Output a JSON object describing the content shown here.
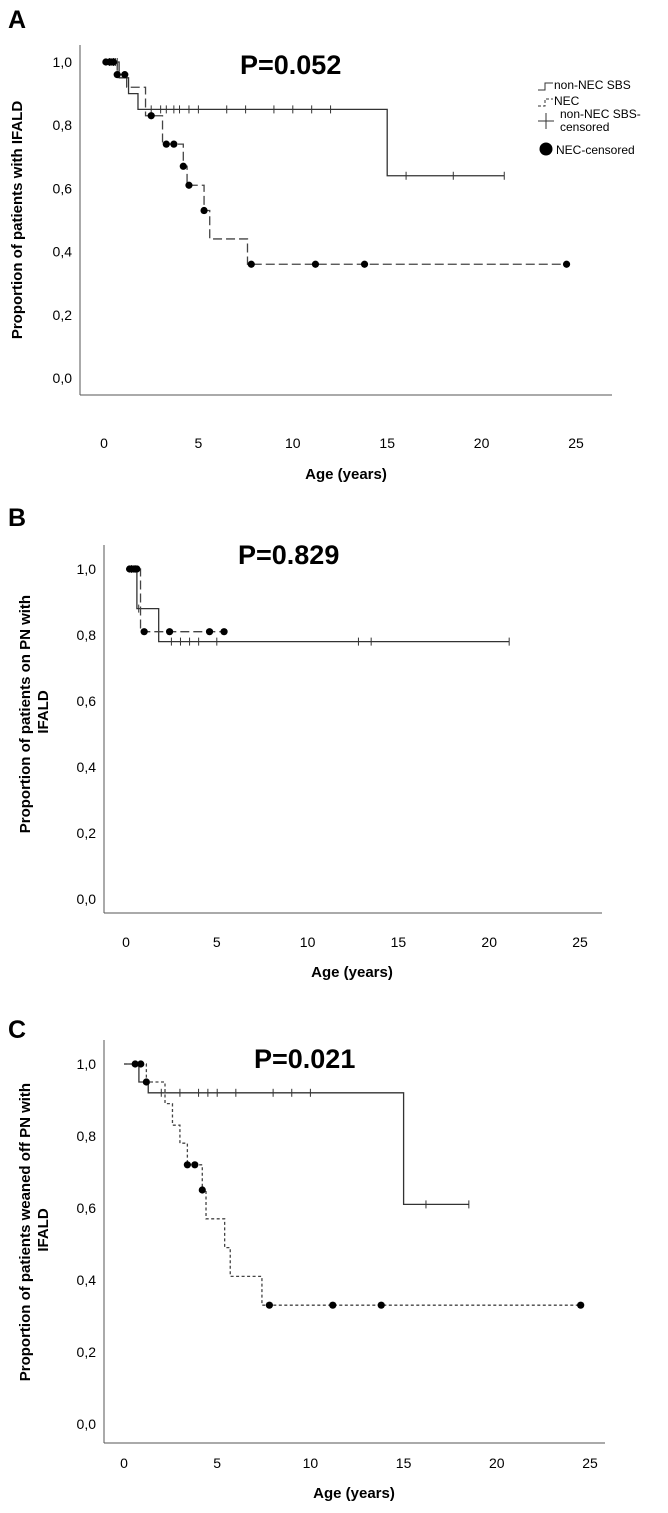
{
  "legend": {
    "items": [
      "non-NEC SBS",
      "NEC",
      "non-NEC SBS-\ncensored",
      "NEC-censored"
    ]
  },
  "chart_data": [
    {
      "type": "line",
      "panel": "A",
      "pvalue": "P=0.052",
      "xlabel": "Age (years)",
      "ylabel": "Proportion of patients with IFALD",
      "xlim": [
        -1,
        27
      ],
      "ylim": [
        -0.03,
        1.05
      ],
      "xticks": [
        "0",
        "5",
        "10",
        "15",
        "20",
        "25"
      ],
      "yticks": [
        "0,0",
        "0,2",
        "0,4",
        "0,6",
        "0,8",
        "1,0"
      ],
      "series": [
        {
          "name": "non-NEC SBS",
          "style": "solid",
          "steps": [
            [
              0,
              1.0
            ],
            [
              0.8,
              0.95
            ],
            [
              1.3,
              0.9
            ],
            [
              1.8,
              0.85
            ],
            [
              15,
              0.64
            ],
            [
              21.2,
              0.64
            ]
          ],
          "censored": [
            0.3,
            0.5,
            0.6,
            0.7,
            2.5,
            3.0,
            3.3,
            3.7,
            4.0,
            4.5,
            5.0,
            6.5,
            7.5,
            9.0,
            10.0,
            11.0,
            12.0,
            16.0,
            18.5,
            21.2
          ]
        },
        {
          "name": "NEC",
          "style": "dashed",
          "steps": [
            [
              0,
              1.0
            ],
            [
              0.7,
              0.96
            ],
            [
              1.2,
              0.92
            ],
            [
              2.2,
              0.83
            ],
            [
              3.1,
              0.74
            ],
            [
              4.2,
              0.67
            ],
            [
              4.4,
              0.61
            ],
            [
              5.3,
              0.53
            ],
            [
              5.6,
              0.44
            ],
            [
              7.6,
              0.36
            ],
            [
              24.5,
              0.36
            ]
          ],
          "censored": [
            0.1,
            0.3,
            0.4,
            0.5,
            0.7,
            1.1,
            2.5,
            3.3,
            3.7,
            4.2,
            4.5,
            5.3,
            7.8,
            11.2,
            13.8,
            24.5
          ]
        }
      ]
    },
    {
      "type": "line",
      "panel": "B",
      "pvalue": "P=0.829",
      "xlabel": "Age (years)",
      "ylabel": "Proportion of patients on PN with IFALD",
      "xlim": [
        -1,
        27
      ],
      "ylim": [
        -0.03,
        1.05
      ],
      "xticks": [
        "0",
        "5",
        "10",
        "15",
        "20",
        "25"
      ],
      "yticks": [
        "0,0",
        "0,2",
        "0,4",
        "0,6",
        "0,8",
        "1,0"
      ],
      "series": [
        {
          "name": "non-NEC SBS",
          "style": "solid",
          "steps": [
            [
              0,
              1.0
            ],
            [
              0.6,
              0.88
            ],
            [
              1.8,
              0.78
            ],
            [
              21.1,
              0.78
            ]
          ],
          "censored": [
            0.3,
            0.5,
            0.7,
            2.5,
            3.0,
            3.5,
            4.0,
            5.0,
            12.8,
            13.5,
            21.1
          ]
        },
        {
          "name": "NEC",
          "style": "dashed",
          "steps": [
            [
              0,
              1.0
            ],
            [
              0.8,
              0.81
            ],
            [
              5.4,
              0.81
            ]
          ],
          "censored": [
            0.2,
            0.4,
            0.6,
            1.0,
            2.4,
            4.6,
            5.4
          ]
        }
      ]
    },
    {
      "type": "line",
      "panel": "C",
      "pvalue": "P=0.021",
      "xlabel": "Age (years)",
      "ylabel": "Proportion of patients weaned off PN with IFALD",
      "xlim": [
        -1,
        27
      ],
      "ylim": [
        -0.03,
        1.05
      ],
      "xticks": [
        "0",
        "5",
        "10",
        "15",
        "20",
        "25"
      ],
      "yticks": [
        "0,0",
        "0,2",
        "0,4",
        "0,6",
        "0,8",
        "1,0"
      ],
      "series": [
        {
          "name": "non-NEC SBS",
          "style": "solid",
          "steps": [
            [
              0,
              1.0
            ],
            [
              0.8,
              0.95
            ],
            [
              1.3,
              0.92
            ],
            [
              15,
              0.61
            ],
            [
              18.5,
              0.61
            ]
          ],
          "censored": [
            2.0,
            3.0,
            4.0,
            4.5,
            5.0,
            6.0,
            8.0,
            9.0,
            10.0,
            16.2,
            18.5
          ]
        },
        {
          "name": "NEC",
          "style": "dotted",
          "steps": [
            [
              0,
              1.0
            ],
            [
              1.2,
              0.95
            ],
            [
              2.2,
              0.89
            ],
            [
              2.6,
              0.83
            ],
            [
              3.0,
              0.78
            ],
            [
              3.4,
              0.72
            ],
            [
              4.2,
              0.65
            ],
            [
              4.4,
              0.57
            ],
            [
              5.4,
              0.49
            ],
            [
              5.7,
              0.41
            ],
            [
              7.4,
              0.33
            ],
            [
              24.5,
              0.33
            ]
          ],
          "censored": [
            0.6,
            0.9,
            1.2,
            3.4,
            3.8,
            4.2,
            7.8,
            11.2,
            13.8,
            24.5
          ]
        }
      ]
    }
  ]
}
